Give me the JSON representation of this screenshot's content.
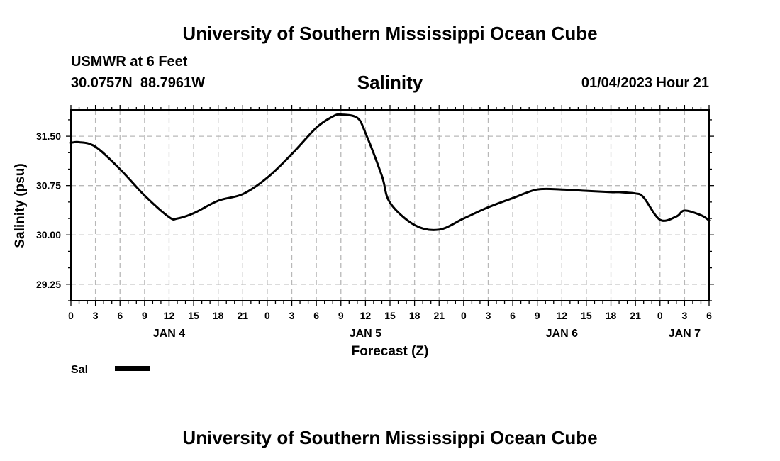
{
  "header": {
    "title": "University of Southern Mississippi Ocean Cube",
    "station": "USMWR at 6 Feet",
    "coords": "30.0757N  88.7961W",
    "variable": "Salinity",
    "issued": "01/04/2023 Hour 21"
  },
  "footer": {
    "title": "University of Southern Mississippi Ocean Cube"
  },
  "legend": {
    "label": "Sal"
  },
  "chart_data": {
    "type": "line",
    "xlabel": "Forecast (Z)",
    "ylabel": "Salinity (psu)",
    "ylim": [
      29.0,
      31.9
    ],
    "xlim": [
      0,
      78
    ],
    "yticks": [
      "29.25",
      "30.00",
      "30.75",
      "31.50"
    ],
    "yvalues": [
      29.25,
      30.0,
      30.75,
      31.5
    ],
    "xtick_labels": [
      "0",
      "3",
      "6",
      "9",
      "12",
      "15",
      "18",
      "21",
      "0",
      "3",
      "6",
      "9",
      "12",
      "15",
      "18",
      "21",
      "0",
      "3",
      "6",
      "9",
      "12",
      "15",
      "18",
      "21",
      "0",
      "3",
      "6"
    ],
    "day_labels": [
      {
        "label": "JAN 4",
        "hour": 12
      },
      {
        "label": "JAN 5",
        "hour": 36
      },
      {
        "label": "JAN 6",
        "hour": 60
      },
      {
        "label": "JAN 7",
        "hour": 75
      }
    ],
    "grid": true,
    "series": [
      {
        "name": "Sal",
        "color": "#000000",
        "x": [
          0,
          1,
          3,
          6,
          9,
          12,
          13,
          15,
          18,
          21,
          24,
          27,
          30,
          32,
          33,
          35,
          36,
          38,
          39,
          42,
          45,
          48,
          51,
          54,
          57,
          60,
          63,
          66,
          67,
          69,
          70,
          72,
          74,
          75,
          77,
          78
        ],
        "y": [
          31.4,
          31.41,
          31.34,
          31.0,
          30.6,
          30.27,
          30.25,
          30.33,
          30.52,
          30.62,
          30.87,
          31.23,
          31.63,
          31.8,
          31.83,
          31.78,
          31.55,
          30.9,
          30.49,
          30.15,
          30.08,
          30.25,
          30.42,
          30.56,
          30.69,
          30.69,
          30.67,
          30.65,
          30.65,
          30.63,
          30.57,
          30.23,
          30.28,
          30.37,
          30.3,
          30.22
        ]
      }
    ]
  }
}
